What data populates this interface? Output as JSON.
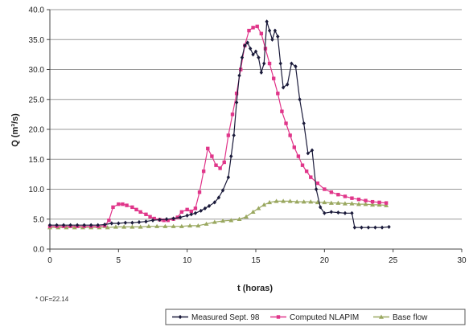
{
  "chart_data": {
    "type": "line",
    "xlabel": "t (horas)",
    "ylabel": "Q (m³/s)",
    "xlim": [
      0,
      30
    ],
    "ylim": [
      0,
      40
    ],
    "x_ticks": [
      "0",
      "5",
      "10",
      "15",
      "20",
      "25",
      "30"
    ],
    "y_ticks": [
      "0.0",
      "5.0",
      "10.0",
      "15.0",
      "20.0",
      "25.0",
      "30.0",
      "35.0",
      "40.0"
    ],
    "grid": "horizontal",
    "legend_position": "bottom-right",
    "annotation": "* OF=22.14",
    "series": [
      {
        "name": "Measured Sept. 98",
        "color": "#1a1a3a",
        "marker": "diamond",
        "points": [
          [
            0,
            4.0
          ],
          [
            0.5,
            4.0
          ],
          [
            1,
            4.0
          ],
          [
            1.5,
            4.0
          ],
          [
            2,
            4.0
          ],
          [
            2.5,
            4.0
          ],
          [
            3,
            4.0
          ],
          [
            3.5,
            4.0
          ],
          [
            4,
            4.1
          ],
          [
            4.5,
            4.3
          ],
          [
            5,
            4.3
          ],
          [
            5.5,
            4.4
          ],
          [
            6,
            4.4
          ],
          [
            6.5,
            4.5
          ],
          [
            7,
            4.6
          ],
          [
            7.5,
            4.8
          ],
          [
            8,
            4.9
          ],
          [
            8.5,
            5.0
          ],
          [
            9,
            5.1
          ],
          [
            9.5,
            5.3
          ],
          [
            10,
            5.6
          ],
          [
            10.3,
            5.8
          ],
          [
            10.6,
            6.0
          ],
          [
            11,
            6.4
          ],
          [
            11.3,
            6.8
          ],
          [
            11.6,
            7.2
          ],
          [
            12,
            7.8
          ],
          [
            12.3,
            8.6
          ],
          [
            12.6,
            9.8
          ],
          [
            13,
            12.0
          ],
          [
            13.2,
            15.5
          ],
          [
            13.4,
            19.0
          ],
          [
            13.6,
            24.5
          ],
          [
            13.8,
            29.0
          ],
          [
            14,
            32.0
          ],
          [
            14.2,
            34.0
          ],
          [
            14.4,
            34.5
          ],
          [
            14.6,
            33.5
          ],
          [
            14.8,
            32.5
          ],
          [
            15,
            33.0
          ],
          [
            15.2,
            32.0
          ],
          [
            15.4,
            29.5
          ],
          [
            15.6,
            31.0
          ],
          [
            15.8,
            38.0
          ],
          [
            16,
            36.5
          ],
          [
            16.2,
            35.0
          ],
          [
            16.4,
            36.5
          ],
          [
            16.6,
            35.5
          ],
          [
            16.8,
            31.0
          ],
          [
            17,
            27.0
          ],
          [
            17.3,
            27.5
          ],
          [
            17.6,
            31.0
          ],
          [
            17.9,
            30.5
          ],
          [
            18.2,
            25.0
          ],
          [
            18.5,
            21.0
          ],
          [
            18.8,
            16.0
          ],
          [
            19.1,
            16.5
          ],
          [
            19.4,
            10.0
          ],
          [
            19.7,
            7.0
          ],
          [
            20,
            6.0
          ],
          [
            20.5,
            6.2
          ],
          [
            21,
            6.1
          ],
          [
            21.5,
            6.0
          ],
          [
            22,
            6.0
          ],
          [
            22.2,
            3.6
          ],
          [
            22.7,
            3.6
          ],
          [
            23.2,
            3.6
          ],
          [
            23.7,
            3.6
          ],
          [
            24.2,
            3.6
          ],
          [
            24.7,
            3.7
          ]
        ]
      },
      {
        "name": "Computed NLAPIM",
        "color": "#e0368a",
        "marker": "square",
        "points": [
          [
            0,
            3.8
          ],
          [
            0.5,
            3.8
          ],
          [
            1,
            3.8
          ],
          [
            1.5,
            3.8
          ],
          [
            2,
            3.8
          ],
          [
            2.5,
            3.8
          ],
          [
            3,
            3.8
          ],
          [
            3.5,
            3.8
          ],
          [
            4,
            3.9
          ],
          [
            4.3,
            4.8
          ],
          [
            4.6,
            7.0
          ],
          [
            5,
            7.5
          ],
          [
            5.3,
            7.5
          ],
          [
            5.6,
            7.3
          ],
          [
            6,
            7.0
          ],
          [
            6.3,
            6.6
          ],
          [
            6.6,
            6.2
          ],
          [
            7,
            5.8
          ],
          [
            7.3,
            5.4
          ],
          [
            7.6,
            5.1
          ],
          [
            8,
            4.9
          ],
          [
            8.3,
            4.8
          ],
          [
            8.6,
            4.8
          ],
          [
            9,
            5.0
          ],
          [
            9.3,
            5.3
          ],
          [
            9.6,
            6.2
          ],
          [
            10,
            6.6
          ],
          [
            10.3,
            6.3
          ],
          [
            10.6,
            6.8
          ],
          [
            10.9,
            9.5
          ],
          [
            11.2,
            13.0
          ],
          [
            11.5,
            16.8
          ],
          [
            11.8,
            15.5
          ],
          [
            12.1,
            14.0
          ],
          [
            12.4,
            13.5
          ],
          [
            12.7,
            14.5
          ],
          [
            13,
            19.0
          ],
          [
            13.3,
            22.5
          ],
          [
            13.6,
            26.0
          ],
          [
            13.9,
            30.0
          ],
          [
            14.2,
            34.0
          ],
          [
            14.5,
            36.5
          ],
          [
            14.8,
            37.0
          ],
          [
            15.1,
            37.2
          ],
          [
            15.4,
            36.0
          ],
          [
            15.7,
            33.5
          ],
          [
            16,
            31.0
          ],
          [
            16.3,
            28.5
          ],
          [
            16.6,
            26.0
          ],
          [
            16.9,
            23.0
          ],
          [
            17.2,
            21.0
          ],
          [
            17.5,
            19.0
          ],
          [
            17.8,
            17.0
          ],
          [
            18.1,
            15.5
          ],
          [
            18.4,
            14.0
          ],
          [
            18.7,
            13.0
          ],
          [
            19,
            12.0
          ],
          [
            19.5,
            11.0
          ],
          [
            20,
            10.0
          ],
          [
            20.5,
            9.5
          ],
          [
            21,
            9.1
          ],
          [
            21.5,
            8.8
          ],
          [
            22,
            8.5
          ],
          [
            22.5,
            8.3
          ],
          [
            23,
            8.1
          ],
          [
            23.5,
            7.9
          ],
          [
            24,
            7.8
          ],
          [
            24.5,
            7.7
          ]
        ]
      },
      {
        "name": "Base flow",
        "color": "#9aa860",
        "marker": "triangle",
        "points": [
          [
            0,
            3.6
          ],
          [
            0.6,
            3.6
          ],
          [
            1.2,
            3.6
          ],
          [
            1.8,
            3.6
          ],
          [
            2.4,
            3.6
          ],
          [
            3,
            3.6
          ],
          [
            3.6,
            3.6
          ],
          [
            4.2,
            3.6
          ],
          [
            4.8,
            3.7
          ],
          [
            5.4,
            3.7
          ],
          [
            6,
            3.7
          ],
          [
            6.6,
            3.7
          ],
          [
            7.2,
            3.8
          ],
          [
            7.8,
            3.8
          ],
          [
            8.4,
            3.8
          ],
          [
            9,
            3.8
          ],
          [
            9.6,
            3.8
          ],
          [
            10.2,
            3.9
          ],
          [
            10.8,
            3.9
          ],
          [
            11.4,
            4.2
          ],
          [
            12,
            4.5
          ],
          [
            12.6,
            4.7
          ],
          [
            13.2,
            4.8
          ],
          [
            13.8,
            5.0
          ],
          [
            14.3,
            5.4
          ],
          [
            14.8,
            6.2
          ],
          [
            15.2,
            6.8
          ],
          [
            15.6,
            7.4
          ],
          [
            16,
            7.8
          ],
          [
            16.5,
            8.0
          ],
          [
            17,
            8.0
          ],
          [
            17.5,
            8.0
          ],
          [
            18,
            7.9
          ],
          [
            18.5,
            7.9
          ],
          [
            19,
            7.9
          ],
          [
            19.5,
            7.8
          ],
          [
            20,
            7.8
          ],
          [
            20.5,
            7.7
          ],
          [
            21,
            7.7
          ],
          [
            21.5,
            7.6
          ],
          [
            22,
            7.6
          ],
          [
            22.5,
            7.5
          ],
          [
            23,
            7.5
          ],
          [
            23.5,
            7.4
          ],
          [
            24,
            7.4
          ],
          [
            24.5,
            7.3
          ]
        ]
      }
    ]
  }
}
